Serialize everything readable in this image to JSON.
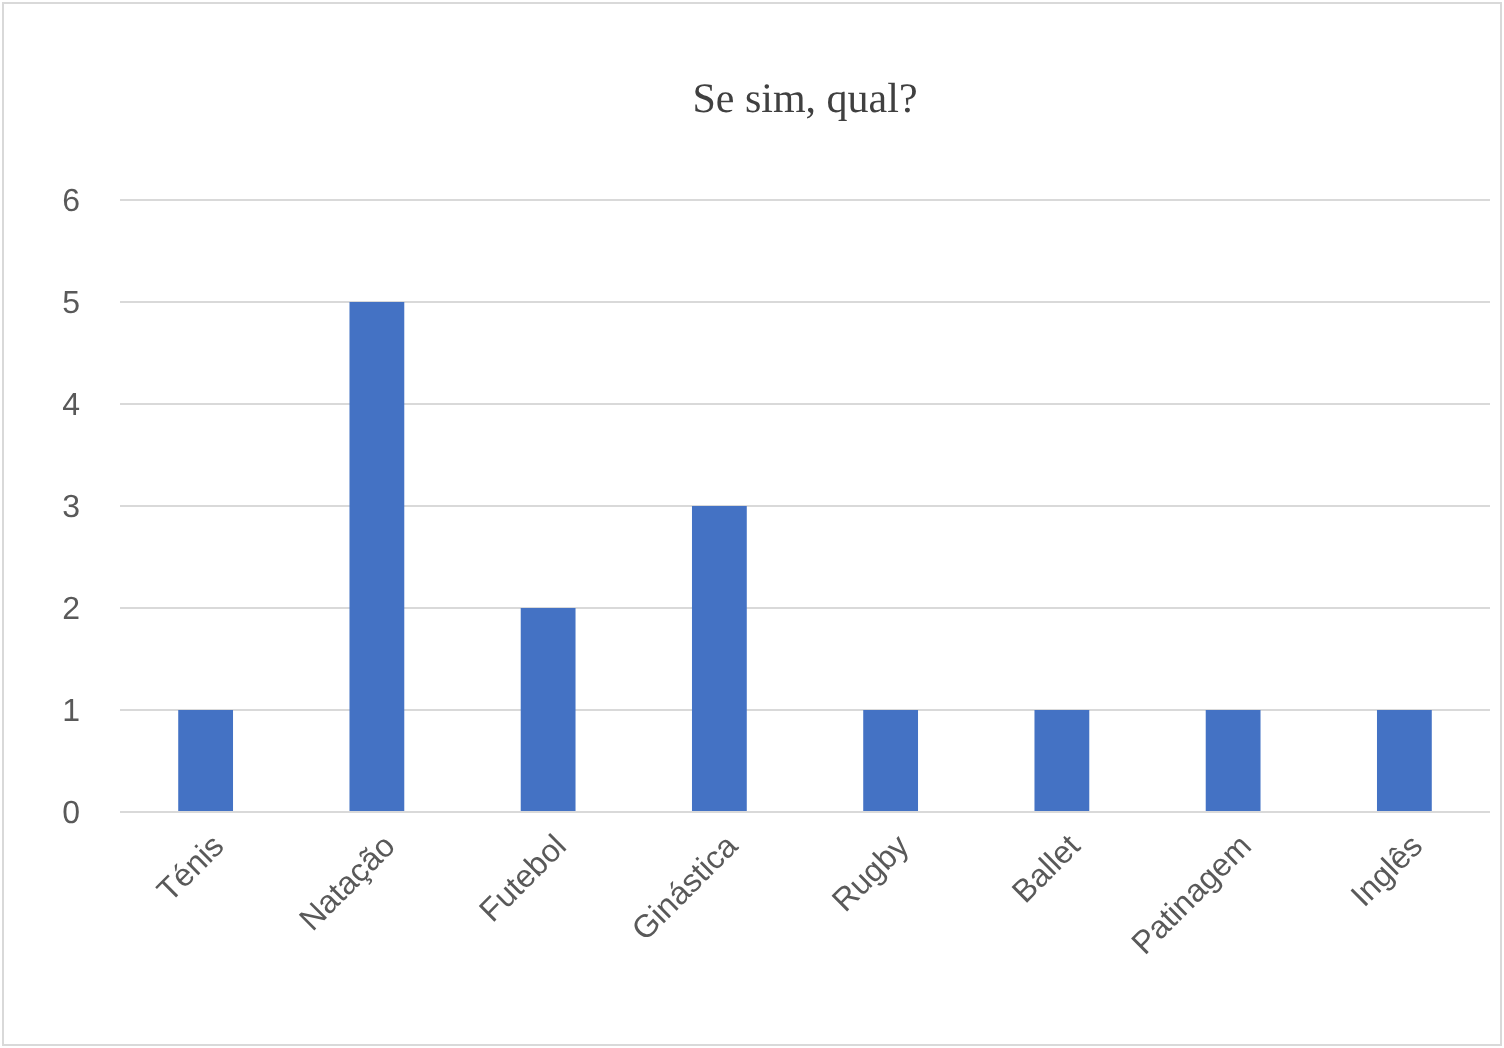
{
  "chart_data": {
    "type": "bar",
    "title": "Se sim, qual?",
    "categories": [
      "Ténis",
      "Natação",
      "Futebol",
      "Ginástica",
      "Rugby",
      "Ballet",
      "Patinagem",
      "Inglês"
    ],
    "values": [
      1,
      5,
      2,
      3,
      1,
      1,
      1,
      1
    ],
    "color": "#4472c4",
    "ylim": [
      0,
      6
    ],
    "yticks": [
      0,
      1,
      2,
      3,
      4,
      5,
      6
    ],
    "grid": "y"
  }
}
